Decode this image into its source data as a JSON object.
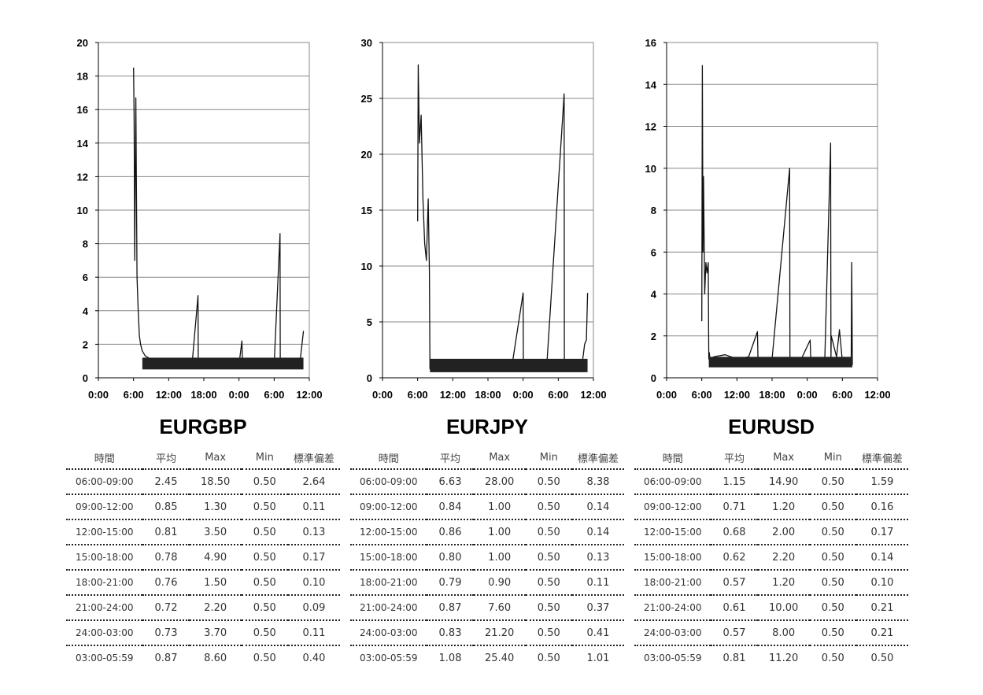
{
  "chart_data": [
    {
      "type": "line",
      "title": "EURGBP",
      "x_ticks": [
        "0:00",
        "6:00",
        "12:00",
        "18:00",
        "0:00",
        "6:00",
        "12:00"
      ],
      "ylim": [
        0,
        20
      ],
      "y_ticks": [
        0,
        2,
        4,
        6,
        8,
        10,
        12,
        14,
        16,
        18,
        20
      ],
      "grid": true,
      "series": [
        {
          "x": [
            6.0,
            6.1,
            6.2,
            6.3,
            6.4,
            6.6,
            6.8,
            7.0,
            7.2,
            7.5,
            8,
            9,
            10,
            12,
            14,
            16,
            17.0,
            17.05,
            17.1,
            18,
            20,
            22,
            24,
            24.5,
            24.6,
            24.7,
            26,
            28,
            30,
            31.0,
            31.05,
            31.1,
            32,
            33,
            33.5,
            34,
            34.5,
            35
          ],
          "y": [
            18.5,
            15.5,
            7.0,
            12.0,
            16.7,
            6.0,
            4.0,
            2.5,
            2.0,
            1.6,
            1.3,
            1.1,
            1.0,
            0.95,
            0.9,
            0.85,
            4.9,
            0.9,
            0.85,
            0.8,
            0.8,
            0.8,
            0.8,
            2.2,
            0.8,
            0.8,
            0.75,
            0.75,
            0.75,
            8.6,
            0.8,
            0.8,
            0.8,
            0.85,
            0.9,
            1.0,
            1.2,
            2.8
          ]
        }
      ]
    },
    {
      "type": "line",
      "title": "EURJPY",
      "x_ticks": [
        "0:00",
        "6:00",
        "12:00",
        "18:00",
        "0:00",
        "6:00",
        "12:00"
      ],
      "ylim": [
        0,
        30
      ],
      "y_ticks": [
        0,
        5,
        10,
        15,
        20,
        25,
        30
      ],
      "grid": true,
      "series": [
        {
          "x": [
            6.0,
            6.1,
            6.3,
            6.6,
            6.9,
            7.2,
            7.5,
            7.8,
            8.0,
            8.1,
            8.2,
            8.3,
            10,
            14,
            18,
            22,
            24.0,
            24.05,
            24.1,
            28,
            31.0,
            31.05,
            31.1,
            33,
            34,
            34.5,
            34.8,
            35
          ],
          "y": [
            14,
            28,
            21,
            23.5,
            16,
            12,
            10.5,
            16,
            9.5,
            0.8,
            0.75,
            0.8,
            0.75,
            0.75,
            0.7,
            0.75,
            7.6,
            0.8,
            0.8,
            0.75,
            25.4,
            0.8,
            0.8,
            0.8,
            0.9,
            3.0,
            3.4,
            7.6
          ]
        }
      ]
    },
    {
      "type": "line",
      "title": "EURUSD",
      "x_ticks": [
        "0:00",
        "6:00",
        "12:00",
        "18:00",
        "0:00",
        "6:00",
        "12:00"
      ],
      "ylim": [
        0,
        16
      ],
      "y_ticks": [
        0,
        2,
        4,
        6,
        8,
        10,
        12,
        14,
        16
      ],
      "grid": true,
      "series": [
        {
          "x": [
            6.0,
            6.1,
            6.2,
            6.3,
            6.5,
            6.7,
            6.9,
            7.1,
            7.2,
            7.3,
            7.4,
            8,
            10,
            12,
            14,
            15.5,
            15.6,
            15.7,
            18,
            21.0,
            21.05,
            21.1,
            23,
            24.5,
            24.6,
            24.7,
            27,
            28.0,
            28.05,
            28.1,
            29,
            29.5,
            30,
            31,
            31.5,
            31.6,
            31.7
          ],
          "y": [
            2.7,
            14.9,
            6,
            9.6,
            4,
            5.5,
            5.0,
            5.5,
            0.9,
            1.2,
            0.8,
            1.0,
            1.1,
            0.9,
            1.0,
            2.2,
            0.9,
            0.9,
            0.9,
            10.0,
            0.9,
            0.9,
            0.9,
            1.8,
            0.9,
            0.9,
            0.9,
            11.2,
            0.9,
            2.0,
            1.0,
            2.3,
            0.8,
            0.8,
            0.8,
            5.5,
            0.6
          ]
        }
      ]
    }
  ],
  "tables": [
    {
      "headers": [
        "時間",
        "平均",
        "Max",
        "Min",
        "標準偏差"
      ],
      "rows": [
        [
          "06:00-09:00",
          "2.45",
          "18.50",
          "0.50",
          "2.64"
        ],
        [
          "09:00-12:00",
          "0.85",
          "1.30",
          "0.50",
          "0.11"
        ],
        [
          "12:00-15:00",
          "0.81",
          "3.50",
          "0.50",
          "0.13"
        ],
        [
          "15:00-18:00",
          "0.78",
          "4.90",
          "0.50",
          "0.17"
        ],
        [
          "18:00-21:00",
          "0.76",
          "1.50",
          "0.50",
          "0.10"
        ],
        [
          "21:00-24:00",
          "0.72",
          "2.20",
          "0.50",
          "0.09"
        ],
        [
          "24:00-03:00",
          "0.73",
          "3.70",
          "0.50",
          "0.11"
        ],
        [
          "03:00-05:59",
          "0.87",
          "8.60",
          "0.50",
          "0.40"
        ]
      ]
    },
    {
      "headers": [
        "時間",
        "平均",
        "Max",
        "Min",
        "標準偏差"
      ],
      "rows": [
        [
          "06:00-09:00",
          "6.63",
          "28.00",
          "0.50",
          "8.38"
        ],
        [
          "09:00-12:00",
          "0.84",
          "1.00",
          "0.50",
          "0.14"
        ],
        [
          "12:00-15:00",
          "0.86",
          "1.00",
          "0.50",
          "0.14"
        ],
        [
          "15:00-18:00",
          "0.80",
          "1.00",
          "0.50",
          "0.13"
        ],
        [
          "18:00-21:00",
          "0.79",
          "0.90",
          "0.50",
          "0.11"
        ],
        [
          "21:00-24:00",
          "0.87",
          "7.60",
          "0.50",
          "0.37"
        ],
        [
          "24:00-03:00",
          "0.83",
          "21.20",
          "0.50",
          "0.41"
        ],
        [
          "03:00-05:59",
          "1.08",
          "25.40",
          "0.50",
          "1.01"
        ]
      ]
    },
    {
      "headers": [
        "時間",
        "平均",
        "Max",
        "Min",
        "標準偏差"
      ],
      "rows": [
        [
          "06:00-09:00",
          "1.15",
          "14.90",
          "0.50",
          "1.59"
        ],
        [
          "09:00-12:00",
          "0.71",
          "1.20",
          "0.50",
          "0.16"
        ],
        [
          "12:00-15:00",
          "0.68",
          "2.00",
          "0.50",
          "0.17"
        ],
        [
          "15:00-18:00",
          "0.62",
          "2.20",
          "0.50",
          "0.14"
        ],
        [
          "18:00-21:00",
          "0.57",
          "1.20",
          "0.50",
          "0.10"
        ],
        [
          "21:00-24:00",
          "0.61",
          "10.00",
          "0.50",
          "0.21"
        ],
        [
          "24:00-03:00",
          "0.57",
          "8.00",
          "0.50",
          "0.21"
        ],
        [
          "03:00-05:59",
          "0.81",
          "11.20",
          "0.50",
          "0.50"
        ]
      ]
    }
  ]
}
